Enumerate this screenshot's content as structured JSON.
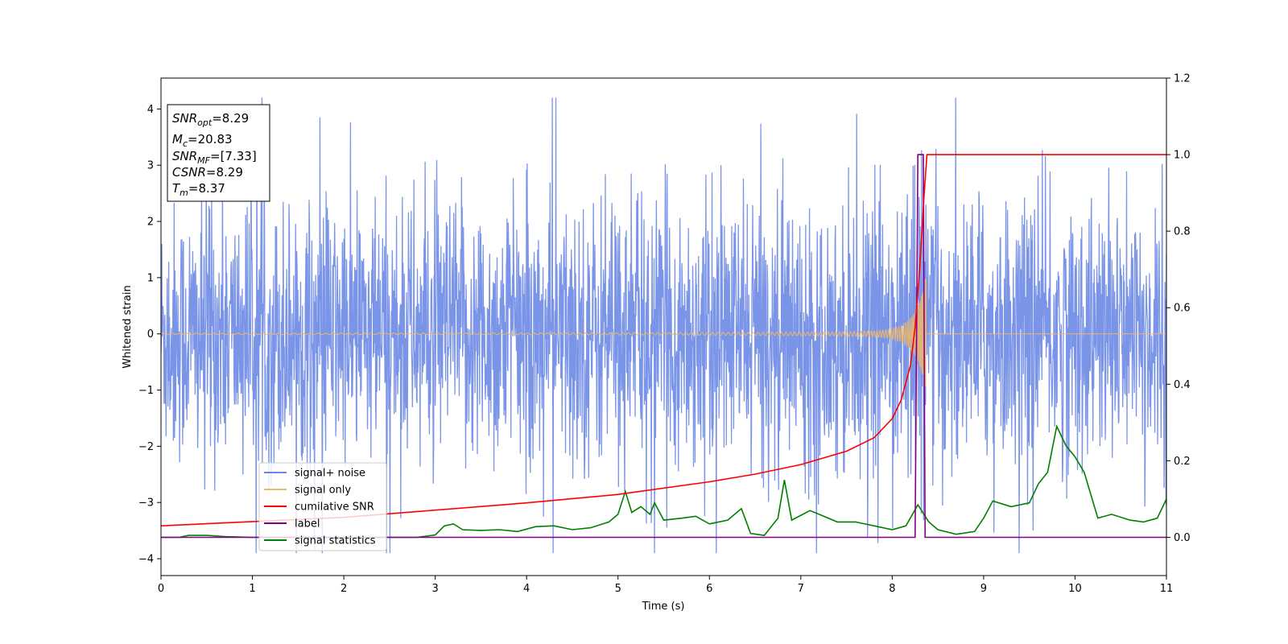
{
  "chart_data": {
    "type": "line",
    "title": "",
    "xlabel": "Time (s)",
    "ylabel": "Whitened strain",
    "y2label": "",
    "xlim": [
      0,
      11
    ],
    "ylim": [
      -4.3,
      4.55
    ],
    "y2lim": [
      -0.1,
      1.2
    ],
    "x_ticks": [
      "0",
      "1",
      "2",
      "3",
      "4",
      "5",
      "6",
      "7",
      "8",
      "9",
      "10",
      "11"
    ],
    "y_ticks": [
      "−4",
      "−3",
      "−2",
      "−1",
      "0",
      "1",
      "2",
      "3",
      "4"
    ],
    "y2_ticks": [
      "0.0",
      "0.2",
      "0.4",
      "0.6",
      "0.8",
      "1.0",
      "1.2"
    ],
    "grid": false,
    "legend_position": "lower-left",
    "annotation": {
      "lines": [
        {
          "base": "SNR",
          "sub": "opt",
          "value": "=8.29"
        },
        {
          "base": "M",
          "sub": "c",
          "value": "=20.83"
        },
        {
          "base": "SNR",
          "sub": "MF",
          "value": "=[7.33]"
        },
        {
          "base": "CSNR",
          "sub": "",
          "value": "=8.29"
        },
        {
          "base": "T",
          "sub": "m",
          "value": "=8.37"
        }
      ]
    },
    "series": [
      {
        "name": "signal+ noise",
        "color": "#6b88e6",
        "axis": "left",
        "description_range": [
          -3.9,
          4.2
        ],
        "typical_amplitude": 2.2
      },
      {
        "name": "signal only",
        "color": "#f2b865",
        "axis": "left",
        "merger_time": 8.37,
        "peak_amplitude": 1.5
      },
      {
        "name": "cumilative SNR",
        "color": "#ff0000",
        "axis": "right",
        "points": [
          [
            0,
            0.03
          ],
          [
            2,
            0.052
          ],
          [
            4,
            0.09
          ],
          [
            5,
            0.112
          ],
          [
            6,
            0.145
          ],
          [
            6.5,
            0.165
          ],
          [
            7,
            0.19
          ],
          [
            7.5,
            0.225
          ],
          [
            7.8,
            0.26
          ],
          [
            8.0,
            0.31
          ],
          [
            8.1,
            0.36
          ],
          [
            8.2,
            0.45
          ],
          [
            8.25,
            0.55
          ],
          [
            8.3,
            0.7
          ],
          [
            8.35,
            0.9
          ],
          [
            8.38,
            1.0
          ],
          [
            11,
            1.0
          ]
        ]
      },
      {
        "name": "label",
        "color": "#800080",
        "axis": "right",
        "points": [
          [
            0,
            0
          ],
          [
            8.25,
            0
          ],
          [
            8.28,
            1.0
          ],
          [
            8.34,
            1.0
          ],
          [
            8.36,
            0
          ],
          [
            11,
            0
          ]
        ]
      },
      {
        "name": "signal statistics",
        "color": "#008000",
        "axis": "right",
        "points": [
          [
            0,
            0
          ],
          [
            0.2,
            0
          ],
          [
            0.3,
            0.005
          ],
          [
            0.5,
            0.005
          ],
          [
            0.7,
            0.002
          ],
          [
            1,
            0
          ],
          [
            2,
            0
          ],
          [
            2.8,
            0
          ],
          [
            3.0,
            0.006
          ],
          [
            3.1,
            0.03
          ],
          [
            3.2,
            0.035
          ],
          [
            3.3,
            0.02
          ],
          [
            3.5,
            0.018
          ],
          [
            3.7,
            0.02
          ],
          [
            3.9,
            0.015
          ],
          [
            4.1,
            0.028
          ],
          [
            4.3,
            0.03
          ],
          [
            4.5,
            0.02
          ],
          [
            4.7,
            0.025
          ],
          [
            4.9,
            0.04
          ],
          [
            5.0,
            0.06
          ],
          [
            5.08,
            0.12
          ],
          [
            5.15,
            0.065
          ],
          [
            5.25,
            0.08
          ],
          [
            5.35,
            0.06
          ],
          [
            5.4,
            0.09
          ],
          [
            5.5,
            0.045
          ],
          [
            5.7,
            0.05
          ],
          [
            5.85,
            0.055
          ],
          [
            6.0,
            0.035
          ],
          [
            6.2,
            0.045
          ],
          [
            6.35,
            0.075
          ],
          [
            6.45,
            0.01
          ],
          [
            6.6,
            0.005
          ],
          [
            6.75,
            0.05
          ],
          [
            6.82,
            0.15
          ],
          [
            6.9,
            0.045
          ],
          [
            7.1,
            0.07
          ],
          [
            7.2,
            0.06
          ],
          [
            7.4,
            0.04
          ],
          [
            7.6,
            0.04
          ],
          [
            7.8,
            0.03
          ],
          [
            8.0,
            0.02
          ],
          [
            8.15,
            0.03
          ],
          [
            8.28,
            0.085
          ],
          [
            8.4,
            0.04
          ],
          [
            8.5,
            0.02
          ],
          [
            8.7,
            0.008
          ],
          [
            8.9,
            0.015
          ],
          [
            9.0,
            0.05
          ],
          [
            9.1,
            0.095
          ],
          [
            9.3,
            0.08
          ],
          [
            9.5,
            0.09
          ],
          [
            9.6,
            0.14
          ],
          [
            9.7,
            0.17
          ],
          [
            9.8,
            0.29
          ],
          [
            9.9,
            0.24
          ],
          [
            10.0,
            0.21
          ],
          [
            10.1,
            0.17
          ],
          [
            10.25,
            0.05
          ],
          [
            10.4,
            0.06
          ],
          [
            10.6,
            0.045
          ],
          [
            10.75,
            0.04
          ],
          [
            10.9,
            0.05
          ],
          [
            11,
            0.1
          ]
        ]
      }
    ]
  }
}
